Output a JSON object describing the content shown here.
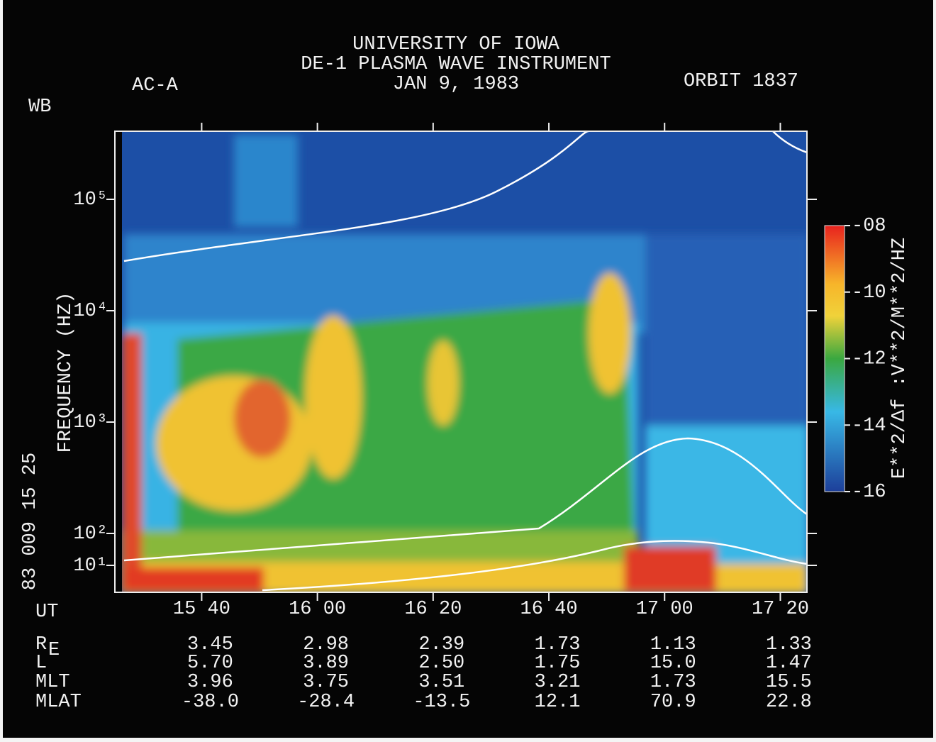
{
  "chart_data": {
    "type": "spectrogram",
    "title": "UNIVERSITY OF IOWA",
    "subtitle": "DE-1 PLASMA WAVE INSTRUMENT",
    "date": "JAN 9, 1983",
    "mode": "AC-A",
    "receiver": "WB",
    "orbit": "ORBIT 1837",
    "start_time": "83 009 15 25",
    "x_label": "UT",
    "y_label": "FREQUENCY (HZ)",
    "log_scale": true,
    "xlim": [
      925,
      1044.6
    ],
    "xticks": [
      {
        "value": 940,
        "label": "15 40"
      },
      {
        "value": 960,
        "label": "16 00"
      },
      {
        "value": 980,
        "label": "16 20"
      },
      {
        "value": 1000,
        "label": "16 40"
      },
      {
        "value": 1020,
        "label": "17 00"
      },
      {
        "value": 1040,
        "label": "17 20"
      }
    ],
    "ylim": [
      1.4,
      420000
    ],
    "yticks": [
      {
        "value": 100000,
        "label": "10⁵"
      },
      {
        "value": 10000,
        "label": "10⁴"
      },
      {
        "value": 1000,
        "label": "10³"
      },
      {
        "value": 100,
        "label": "10²"
      },
      {
        "value": 10,
        "label": "10¹"
      }
    ],
    "colorbar": {
      "label": "E**2/Δf :V**2/M**2/HZ",
      "lim": [
        -8,
        -16
      ],
      "ticks": [
        {
          "value": -8,
          "label": "-08"
        },
        -10,
        -12,
        -14,
        -16
      ]
    },
    "ephemeris": [
      {
        "name": "R",
        "sub": "E",
        "values": [
          "3.45",
          "2.98",
          "2.39",
          "1.73",
          "1.13",
          "1.33"
        ]
      },
      {
        "name": "L",
        "values": [
          "5.70",
          "3.89",
          "2.50",
          "1.75",
          "15.0",
          "1.47"
        ]
      },
      {
        "name": "MLT",
        "values": [
          "3.96",
          "3.75",
          "3.51",
          "3.21",
          "1.73",
          "15.5"
        ]
      },
      {
        "name": "MLAT",
        "values": [
          "-38.0",
          "-28.4",
          "-13.5",
          "12.1",
          "70.9",
          "22.8"
        ]
      }
    ]
  }
}
